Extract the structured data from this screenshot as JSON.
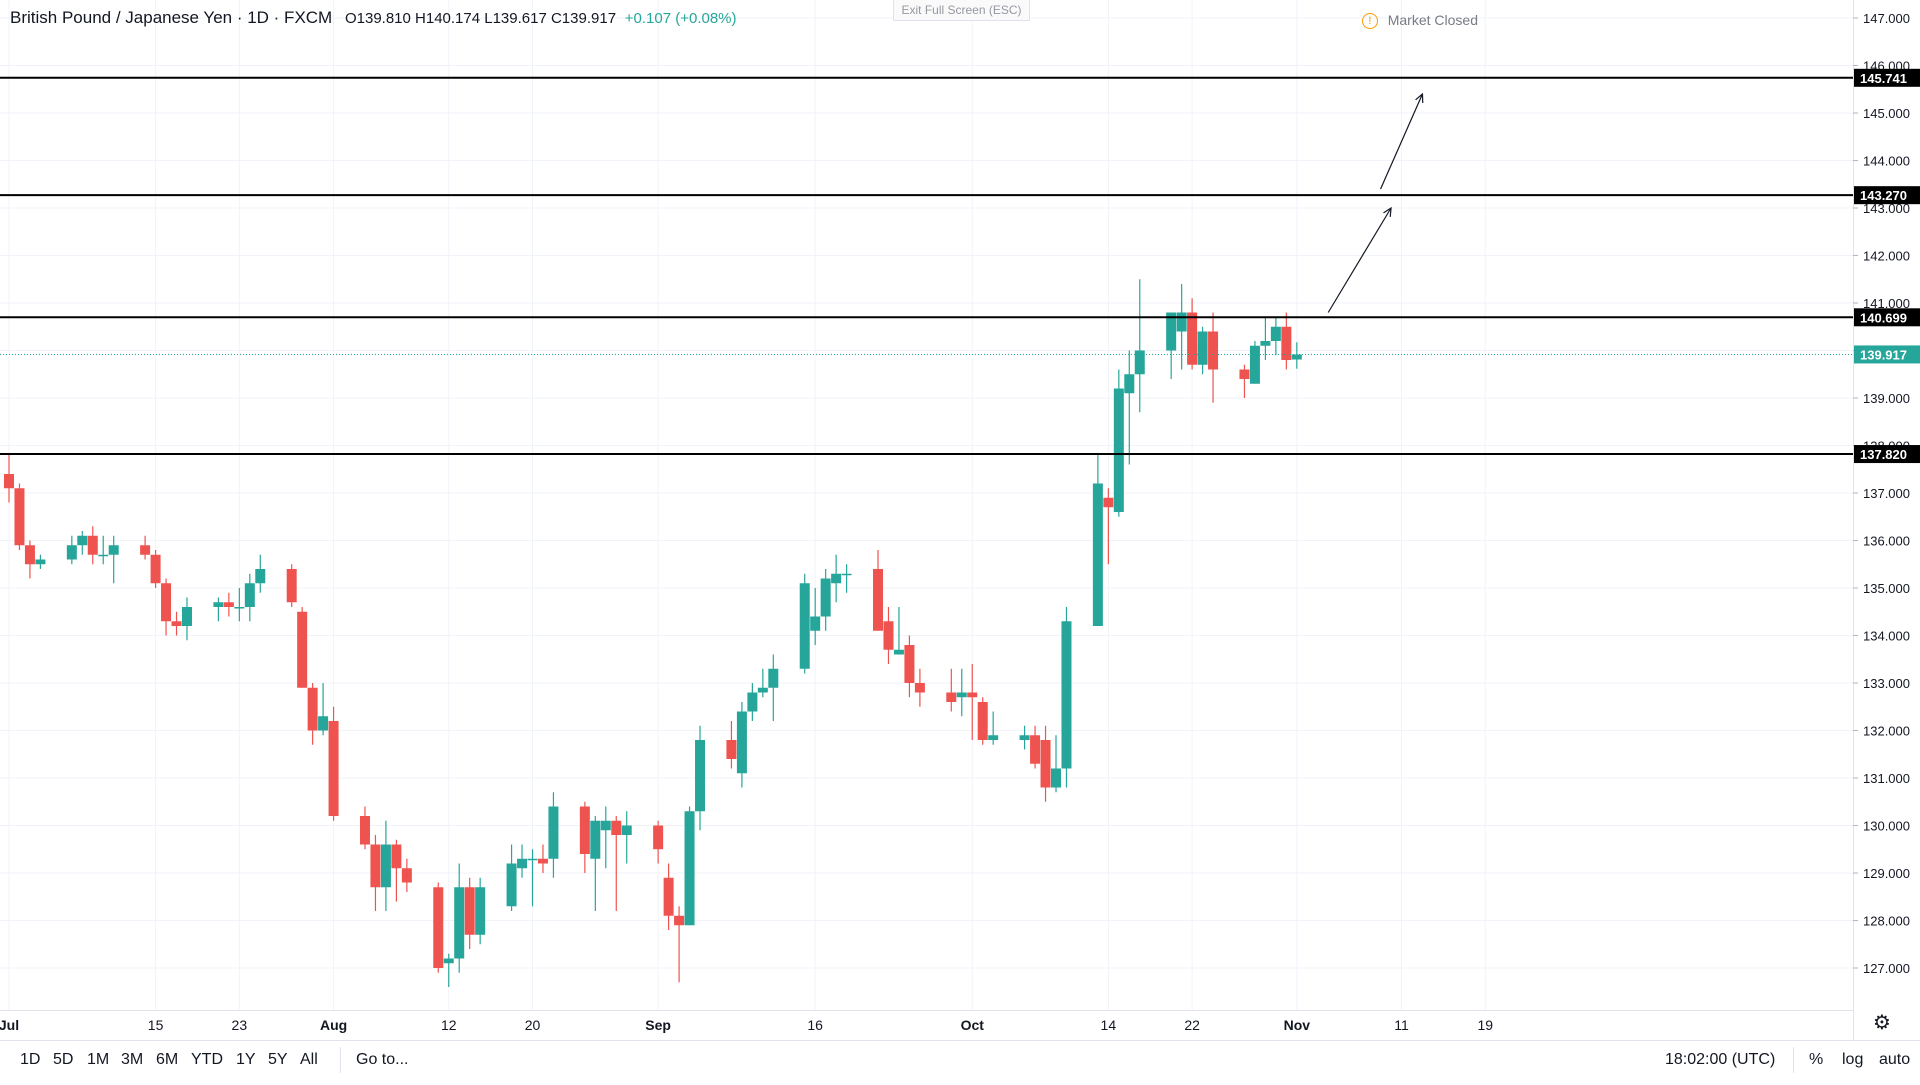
{
  "header": {
    "symbol": "British Pound / Japanese Yen · 1D · FXCM",
    "ohlc": "O139.810 H140.174 L139.617 C139.917",
    "change": "+0.107 (+0.08%)",
    "exit_fullscreen": "Exit Full Screen (ESC)",
    "market_status": "Market Closed",
    "market_icon": "!"
  },
  "bottom": {
    "ranges": [
      "1D",
      "5D",
      "1M",
      "3M",
      "6M",
      "YTD",
      "1Y",
      "5Y",
      "All"
    ],
    "goto": "Go to...",
    "time": "18:02:00 (UTC)",
    "percent": "%",
    "log": "log",
    "auto": "auto"
  },
  "colors": {
    "up": "#26a69a",
    "down": "#ef5350",
    "grid": "#f0f3fa",
    "line": "#000000"
  },
  "chart_data": {
    "type": "candlestick",
    "title": "British Pound / Japanese Yen · 1D · FXCM",
    "ylim": [
      126.5,
      147.3
    ],
    "y_ticks": [
      127,
      128,
      129,
      130,
      131,
      132,
      133,
      134,
      135,
      136,
      137,
      138,
      139,
      140,
      141,
      142,
      143,
      144,
      145,
      146,
      147
    ],
    "y_tick_labels": [
      "127.000",
      "128.000",
      "129.000",
      "130.000",
      "131.000",
      "132.000",
      "133.000",
      "134.000",
      "135.000",
      "136.000",
      "137.000",
      "138.000",
      "139.000",
      "140.000",
      "141.000",
      "142.000",
      "143.000",
      "144.000",
      "145.000",
      "146.000",
      "147.000"
    ],
    "x_ticks": [
      {
        "day": 0,
        "label": "Jul"
      },
      {
        "day": 14,
        "label": "15"
      },
      {
        "day": 22,
        "label": "23"
      },
      {
        "day": 31,
        "label": "Aug"
      },
      {
        "day": 42,
        "label": "12"
      },
      {
        "day": 50,
        "label": "20"
      },
      {
        "day": 62,
        "label": "Sep"
      },
      {
        "day": 77,
        "label": "16"
      },
      {
        "day": 92,
        "label": "Oct"
      },
      {
        "day": 105,
        "label": "14"
      },
      {
        "day": 113,
        "label": "22"
      },
      {
        "day": 123,
        "label": "Nov"
      },
      {
        "day": 133,
        "label": "11"
      },
      {
        "day": 141,
        "label": "19"
      }
    ],
    "x_range_days": [
      0,
      149
    ],
    "candles": [
      {
        "d": 0,
        "o": 137.4,
        "h": 137.8,
        "l": 136.8,
        "c": 137.1
      },
      {
        "d": 1,
        "o": 137.1,
        "h": 137.2,
        "l": 135.8,
        "c": 135.9
      },
      {
        "d": 2,
        "o": 135.9,
        "h": 136.0,
        "l": 135.2,
        "c": 135.5
      },
      {
        "d": 3,
        "o": 135.5,
        "h": 135.7,
        "l": 135.4,
        "c": 135.6
      },
      {
        "d": 6,
        "o": 135.6,
        "h": 136.1,
        "l": 135.5,
        "c": 135.9
      },
      {
        "d": 7,
        "o": 135.9,
        "h": 136.2,
        "l": 135.7,
        "c": 136.1
      },
      {
        "d": 8,
        "o": 136.1,
        "h": 136.3,
        "l": 135.5,
        "c": 135.7
      },
      {
        "d": 9,
        "o": 135.7,
        "h": 136.1,
        "l": 135.5,
        "c": 135.7
      },
      {
        "d": 10,
        "o": 135.7,
        "h": 136.1,
        "l": 135.1,
        "c": 135.9
      },
      {
        "d": 13,
        "o": 135.9,
        "h": 136.1,
        "l": 135.6,
        "c": 135.7
      },
      {
        "d": 14,
        "o": 135.7,
        "h": 135.8,
        "l": 135.0,
        "c": 135.1
      },
      {
        "d": 15,
        "o": 135.1,
        "h": 135.2,
        "l": 134.0,
        "c": 134.3
      },
      {
        "d": 16,
        "o": 134.3,
        "h": 134.5,
        "l": 134.0,
        "c": 134.2
      },
      {
        "d": 17,
        "o": 134.2,
        "h": 134.8,
        "l": 133.9,
        "c": 134.6
      },
      {
        "d": 20,
        "o": 134.6,
        "h": 134.8,
        "l": 134.3,
        "c": 134.7
      },
      {
        "d": 21,
        "o": 134.7,
        "h": 134.9,
        "l": 134.4,
        "c": 134.6
      },
      {
        "d": 22,
        "o": 134.6,
        "h": 135.0,
        "l": 134.3,
        "c": 134.6
      },
      {
        "d": 23,
        "o": 134.6,
        "h": 135.3,
        "l": 134.3,
        "c": 135.1
      },
      {
        "d": 24,
        "o": 135.1,
        "h": 135.7,
        "l": 134.9,
        "c": 135.4
      },
      {
        "d": 27,
        "o": 135.4,
        "h": 135.5,
        "l": 134.6,
        "c": 134.7
      },
      {
        "d": 28,
        "o": 134.5,
        "h": 134.6,
        "l": 132.9,
        "c": 132.9
      },
      {
        "d": 29,
        "o": 132.9,
        "h": 133.0,
        "l": 131.7,
        "c": 132.0
      },
      {
        "d": 30,
        "o": 132.0,
        "h": 133.0,
        "l": 131.9,
        "c": 132.3
      },
      {
        "d": 31,
        "o": 132.2,
        "h": 132.5,
        "l": 130.1,
        "c": 130.2
      },
      {
        "d": 34,
        "o": 130.2,
        "h": 130.4,
        "l": 129.5,
        "c": 129.6
      },
      {
        "d": 35,
        "o": 129.6,
        "h": 129.8,
        "l": 128.2,
        "c": 128.7
      },
      {
        "d": 36,
        "o": 128.7,
        "h": 130.1,
        "l": 128.2,
        "c": 129.6
      },
      {
        "d": 37,
        "o": 129.6,
        "h": 129.7,
        "l": 128.4,
        "c": 129.1
      },
      {
        "d": 38,
        "o": 129.1,
        "h": 129.3,
        "l": 128.6,
        "c": 128.8
      },
      {
        "d": 41,
        "o": 128.7,
        "h": 128.8,
        "l": 126.9,
        "c": 127.0
      },
      {
        "d": 42,
        "o": 127.1,
        "h": 127.3,
        "l": 126.6,
        "c": 127.2
      },
      {
        "d": 43,
        "o": 127.2,
        "h": 129.2,
        "l": 126.9,
        "c": 128.7
      },
      {
        "d": 44,
        "o": 128.7,
        "h": 128.9,
        "l": 127.4,
        "c": 127.7
      },
      {
        "d": 45,
        "o": 127.7,
        "h": 128.9,
        "l": 127.5,
        "c": 128.7
      },
      {
        "d": 48,
        "o": 128.3,
        "h": 129.6,
        "l": 128.2,
        "c": 129.2
      },
      {
        "d": 49,
        "o": 129.1,
        "h": 129.6,
        "l": 128.9,
        "c": 129.3
      },
      {
        "d": 50,
        "o": 129.3,
        "h": 129.5,
        "l": 128.3,
        "c": 129.3
      },
      {
        "d": 51,
        "o": 129.3,
        "h": 129.6,
        "l": 129.0,
        "c": 129.2
      },
      {
        "d": 52,
        "o": 129.3,
        "h": 130.7,
        "l": 128.9,
        "c": 130.4
      },
      {
        "d": 55,
        "o": 130.4,
        "h": 130.5,
        "l": 129.0,
        "c": 129.4
      },
      {
        "d": 56,
        "o": 129.3,
        "h": 130.2,
        "l": 128.2,
        "c": 130.1
      },
      {
        "d": 57,
        "o": 129.9,
        "h": 130.4,
        "l": 129.1,
        "c": 130.1
      },
      {
        "d": 58,
        "o": 130.1,
        "h": 130.2,
        "l": 128.2,
        "c": 129.8
      },
      {
        "d": 59,
        "o": 129.8,
        "h": 130.3,
        "l": 129.2,
        "c": 130.0
      },
      {
        "d": 62,
        "o": 130.0,
        "h": 130.1,
        "l": 129.2,
        "c": 129.5
      },
      {
        "d": 63,
        "o": 128.9,
        "h": 129.2,
        "l": 127.8,
        "c": 128.1
      },
      {
        "d": 64,
        "o": 128.1,
        "h": 128.3,
        "l": 126.7,
        "c": 127.9
      },
      {
        "d": 65,
        "o": 127.9,
        "h": 130.4,
        "l": 127.9,
        "c": 130.3
      },
      {
        "d": 66,
        "o": 130.3,
        "h": 132.1,
        "l": 129.9,
        "c": 131.8
      },
      {
        "d": 69,
        "o": 131.8,
        "h": 132.2,
        "l": 131.2,
        "c": 131.4
      },
      {
        "d": 70,
        "o": 131.1,
        "h": 132.6,
        "l": 130.8,
        "c": 132.4
      },
      {
        "d": 71,
        "o": 132.4,
        "h": 133.0,
        "l": 132.2,
        "c": 132.8
      },
      {
        "d": 72,
        "o": 132.8,
        "h": 133.3,
        "l": 132.7,
        "c": 132.9
      },
      {
        "d": 73,
        "o": 132.9,
        "h": 133.6,
        "l": 132.2,
        "c": 133.3
      },
      {
        "d": 76,
        "o": 133.3,
        "h": 135.3,
        "l": 133.2,
        "c": 135.1
      },
      {
        "d": 77,
        "o": 134.1,
        "h": 135.0,
        "l": 133.8,
        "c": 134.4
      },
      {
        "d": 78,
        "o": 134.4,
        "h": 135.4,
        "l": 134.1,
        "c": 135.2
      },
      {
        "d": 79,
        "o": 135.1,
        "h": 135.7,
        "l": 134.7,
        "c": 135.3
      },
      {
        "d": 80,
        "o": 135.3,
        "h": 135.5,
        "l": 134.9,
        "c": 135.3
      },
      {
        "d": 83,
        "o": 135.4,
        "h": 135.8,
        "l": 134.1,
        "c": 134.1
      },
      {
        "d": 84,
        "o": 134.3,
        "h": 134.6,
        "l": 133.4,
        "c": 133.7
      },
      {
        "d": 85,
        "o": 133.6,
        "h": 134.6,
        "l": 133.6,
        "c": 133.7
      },
      {
        "d": 86,
        "o": 133.8,
        "h": 134.0,
        "l": 132.7,
        "c": 133.0
      },
      {
        "d": 87,
        "o": 133.0,
        "h": 133.3,
        "l": 132.5,
        "c": 132.8
      },
      {
        "d": 90,
        "o": 132.8,
        "h": 133.3,
        "l": 132.4,
        "c": 132.6
      },
      {
        "d": 91,
        "o": 132.7,
        "h": 133.3,
        "l": 132.3,
        "c": 132.8
      },
      {
        "d": 92,
        "o": 132.8,
        "h": 133.4,
        "l": 131.8,
        "c": 132.7
      },
      {
        "d": 93,
        "o": 132.6,
        "h": 132.7,
        "l": 131.7,
        "c": 131.8
      },
      {
        "d": 94,
        "o": 131.8,
        "h": 132.4,
        "l": 131.7,
        "c": 131.9
      },
      {
        "d": 97,
        "o": 131.8,
        "h": 132.1,
        "l": 131.6,
        "c": 131.9
      },
      {
        "d": 98,
        "o": 131.9,
        "h": 132.1,
        "l": 131.2,
        "c": 131.3
      },
      {
        "d": 99,
        "o": 131.8,
        "h": 132.1,
        "l": 130.5,
        "c": 130.8
      },
      {
        "d": 100,
        "o": 130.8,
        "h": 131.9,
        "l": 130.7,
        "c": 131.2
      },
      {
        "d": 101,
        "o": 131.2,
        "h": 134.6,
        "l": 130.8,
        "c": 134.3
      },
      {
        "d": 104,
        "o": 134.2,
        "h": 137.8,
        "l": 134.2,
        "c": 137.2
      },
      {
        "d": 105,
        "o": 136.9,
        "h": 137.1,
        "l": 135.5,
        "c": 136.7
      },
      {
        "d": 106,
        "o": 136.6,
        "h": 139.6,
        "l": 136.5,
        "c": 139.2
      },
      {
        "d": 107,
        "o": 139.1,
        "h": 140.0,
        "l": 137.6,
        "c": 139.5
      },
      {
        "d": 108,
        "o": 139.5,
        "h": 141.5,
        "l": 138.7,
        "c": 140.0
      },
      {
        "d": 111,
        "o": 140.0,
        "h": 140.8,
        "l": 139.4,
        "c": 140.8
      },
      {
        "d": 112,
        "o": 140.4,
        "h": 141.4,
        "l": 139.6,
        "c": 140.8
      },
      {
        "d": 113,
        "o": 140.8,
        "h": 141.1,
        "l": 139.6,
        "c": 139.7
      },
      {
        "d": 114,
        "o": 139.7,
        "h": 140.5,
        "l": 139.5,
        "c": 140.4
      },
      {
        "d": 115,
        "o": 140.4,
        "h": 140.8,
        "l": 138.9,
        "c": 139.6
      },
      {
        "d": 118,
        "o": 139.6,
        "h": 139.7,
        "l": 139.0,
        "c": 139.4
      },
      {
        "d": 119,
        "o": 139.3,
        "h": 140.2,
        "l": 139.3,
        "c": 140.1
      },
      {
        "d": 120,
        "o": 140.1,
        "h": 140.7,
        "l": 139.8,
        "c": 140.2
      },
      {
        "d": 121,
        "o": 140.2,
        "h": 140.7,
        "l": 139.9,
        "c": 140.5
      },
      {
        "d": 122,
        "o": 140.5,
        "h": 140.8,
        "l": 139.6,
        "c": 139.8
      },
      {
        "d": 123,
        "o": 139.81,
        "h": 140.174,
        "l": 139.617,
        "c": 139.917
      }
    ],
    "horizontal_lines": [
      {
        "price": 145.741,
        "label": "145.741"
      },
      {
        "price": 143.27,
        "label": "143.270"
      },
      {
        "price": 140.699,
        "label": "140.699"
      },
      {
        "price": 137.82,
        "label": "137.820"
      }
    ],
    "last_price": {
      "price": 139.917,
      "label": "139.917"
    },
    "arrows": [
      {
        "from": {
          "d": 126,
          "p": 140.8
        },
        "to": {
          "d": 132,
          "p": 143.0
        }
      },
      {
        "from": {
          "d": 131,
          "p": 143.4
        },
        "to": {
          "d": 135,
          "p": 145.4
        }
      }
    ]
  }
}
